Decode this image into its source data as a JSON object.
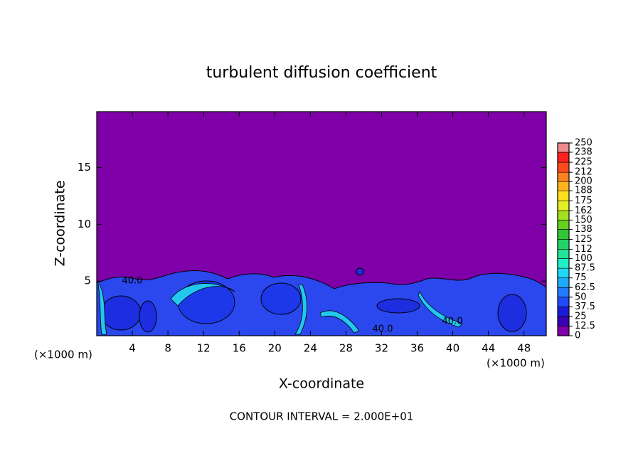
{
  "chart_data": {
    "type": "contour",
    "title": "turbulent diffusion coefficient",
    "x_label": "X-coordinate",
    "y_label": "Z-coordinate",
    "x_unit": "(×1000 m)",
    "x_unit_right": "(×1000 m)",
    "footer": "CONTOUR INTERVAL = 2.000E+01",
    "xlim": [
      0,
      50.5
    ],
    "ylim": [
      0.2,
      19.9
    ],
    "xticks": [
      4,
      8,
      12,
      16,
      20,
      24,
      28,
      32,
      36,
      40,
      44,
      48
    ],
    "yticks": [
      5,
      10,
      15
    ],
    "contour_labels": [
      "40.0",
      "40.0",
      "40.0"
    ],
    "colorbar": {
      "levels": [
        0,
        12.5,
        25,
        37.5,
        50,
        62.5,
        75,
        87.5,
        100,
        112,
        125,
        138,
        150,
        162,
        175,
        188,
        200,
        212,
        225,
        238,
        250
      ],
      "colors": [
        "#7f00a8",
        "#3a00b4",
        "#1c1cd8",
        "#1f4cf8",
        "#1f7cff",
        "#1eaaff",
        "#1ed8f4",
        "#20f0c8",
        "#20e498",
        "#22d468",
        "#30c836",
        "#66d020",
        "#a4e020",
        "#e0f020",
        "#ffe020",
        "#ffb41e",
        "#ff821e",
        "#ff4a1e",
        "#ff2020",
        "#f08a8a"
      ],
      "clim": [
        0,
        250
      ]
    }
  }
}
